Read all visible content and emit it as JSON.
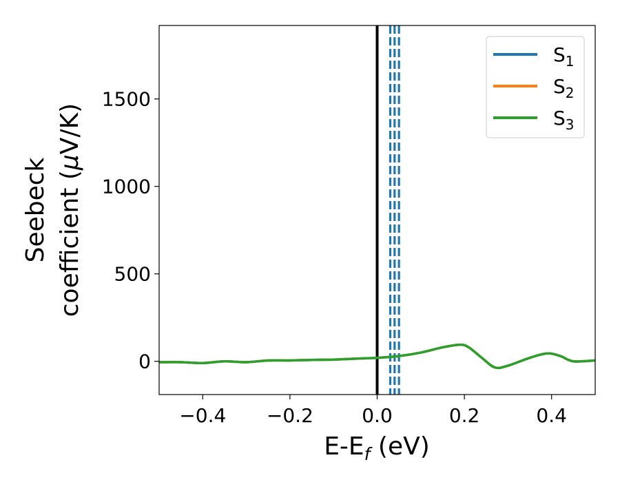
{
  "chart_data": {
    "type": "line",
    "xlabel": {
      "main": "E-E",
      "sub": "f",
      "unit": " (eV)"
    },
    "ylabel": {
      "line1": "Seebeck",
      "line2": "coefficient  (",
      "mu": "μ",
      "line2_end": "V/K)"
    },
    "xlim": [
      -0.5,
      0.5
    ],
    "ylim": [
      -190,
      1920
    ],
    "xticks": [
      -0.4,
      -0.2,
      0.0,
      0.2,
      0.4
    ],
    "xtick_labels": [
      "−0.4",
      "−0.2",
      "0.0",
      "0.2",
      "0.4"
    ],
    "yticks": [
      0,
      500,
      1000,
      1500
    ],
    "ytick_labels": [
      "0",
      "500",
      "1000",
      "1500"
    ],
    "grid": false,
    "legend_position": "top-right",
    "series": [
      {
        "name": "S",
        "sub": "1",
        "color": "#1f77b4",
        "x": [
          -0.5,
          -0.45,
          -0.4,
          -0.35,
          -0.3,
          -0.25,
          -0.2,
          -0.15,
          -0.1,
          -0.05,
          0.0,
          0.05,
          0.1,
          0.15,
          0.19,
          0.21,
          0.24,
          0.27,
          0.3,
          0.35,
          0.39,
          0.42,
          0.45,
          0.5
        ],
        "y": [
          -5,
          -5,
          -10,
          0,
          -5,
          5,
          5,
          8,
          10,
          15,
          20,
          30,
          50,
          80,
          95,
          80,
          20,
          -35,
          -25,
          20,
          45,
          30,
          0,
          5
        ]
      },
      {
        "name": "S",
        "sub": "2",
        "color": "#ff7f0e",
        "x": [
          -0.5,
          -0.45,
          -0.4,
          -0.35,
          -0.3,
          -0.25,
          -0.2,
          -0.15,
          -0.1,
          -0.05,
          0.0,
          0.05,
          0.1,
          0.15,
          0.19,
          0.21,
          0.24,
          0.27,
          0.3,
          0.35,
          0.39,
          0.42,
          0.45,
          0.5
        ],
        "y": [
          -5,
          -5,
          -10,
          0,
          -5,
          5,
          5,
          8,
          10,
          15,
          20,
          30,
          50,
          80,
          95,
          80,
          20,
          -35,
          -25,
          20,
          45,
          30,
          0,
          5
        ]
      },
      {
        "name": "S",
        "sub": "3",
        "color": "#2ca02c",
        "x": [
          -0.5,
          -0.45,
          -0.4,
          -0.35,
          -0.3,
          -0.25,
          -0.2,
          -0.15,
          -0.1,
          -0.05,
          0.0,
          0.05,
          0.1,
          0.15,
          0.19,
          0.21,
          0.24,
          0.27,
          0.3,
          0.35,
          0.39,
          0.42,
          0.45,
          0.5
        ],
        "y": [
          -5,
          -5,
          -10,
          0,
          -5,
          5,
          5,
          8,
          10,
          15,
          20,
          30,
          50,
          80,
          95,
          80,
          20,
          -35,
          -25,
          20,
          45,
          30,
          0,
          5
        ]
      }
    ],
    "vertical_lines": [
      {
        "x": 0.0,
        "color": "#000000",
        "style": "solid"
      },
      {
        "x": 0.03,
        "color": "#1f77b4",
        "style": "dashed"
      },
      {
        "x": 0.04,
        "color": "#1f77b4",
        "style": "dashed"
      },
      {
        "x": 0.05,
        "color": "#1f77b4",
        "style": "dashed"
      }
    ]
  }
}
